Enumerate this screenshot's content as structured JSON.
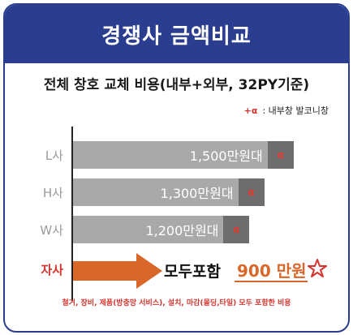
{
  "header": {
    "title": "경쟁사 금액비교"
  },
  "subtitle": "전체 창호 교체 비용(내부+외부, 32PY기준)",
  "note": {
    "symbol": "+α",
    "text": ": 내부창 발코니창"
  },
  "colors": {
    "header_bg": "#2a3d8f",
    "bar_main": "#a9a9a9",
    "bar_alpha": "#6d6d6d",
    "accent_red": "#d4342e",
    "accent_orange": "#d9672a"
  },
  "chart_data": {
    "type": "bar",
    "orientation": "horizontal",
    "categories": [
      "L사",
      "H사",
      "W사"
    ],
    "values": [
      1500,
      1300,
      1200
    ],
    "value_labels": [
      "1,500만원대",
      "1,300만원대",
      "1,200만원대"
    ],
    "alpha_label": "α",
    "xlim": [
      0,
      1700
    ],
    "grid": false
  },
  "ours": {
    "label": "자사",
    "text": "모두포함",
    "price": "900 만원",
    "footnote": "철거, 장비, 제품(방충망 서비스), 설치, 마감(몰딩,타일) 모두 포함한 비용"
  }
}
